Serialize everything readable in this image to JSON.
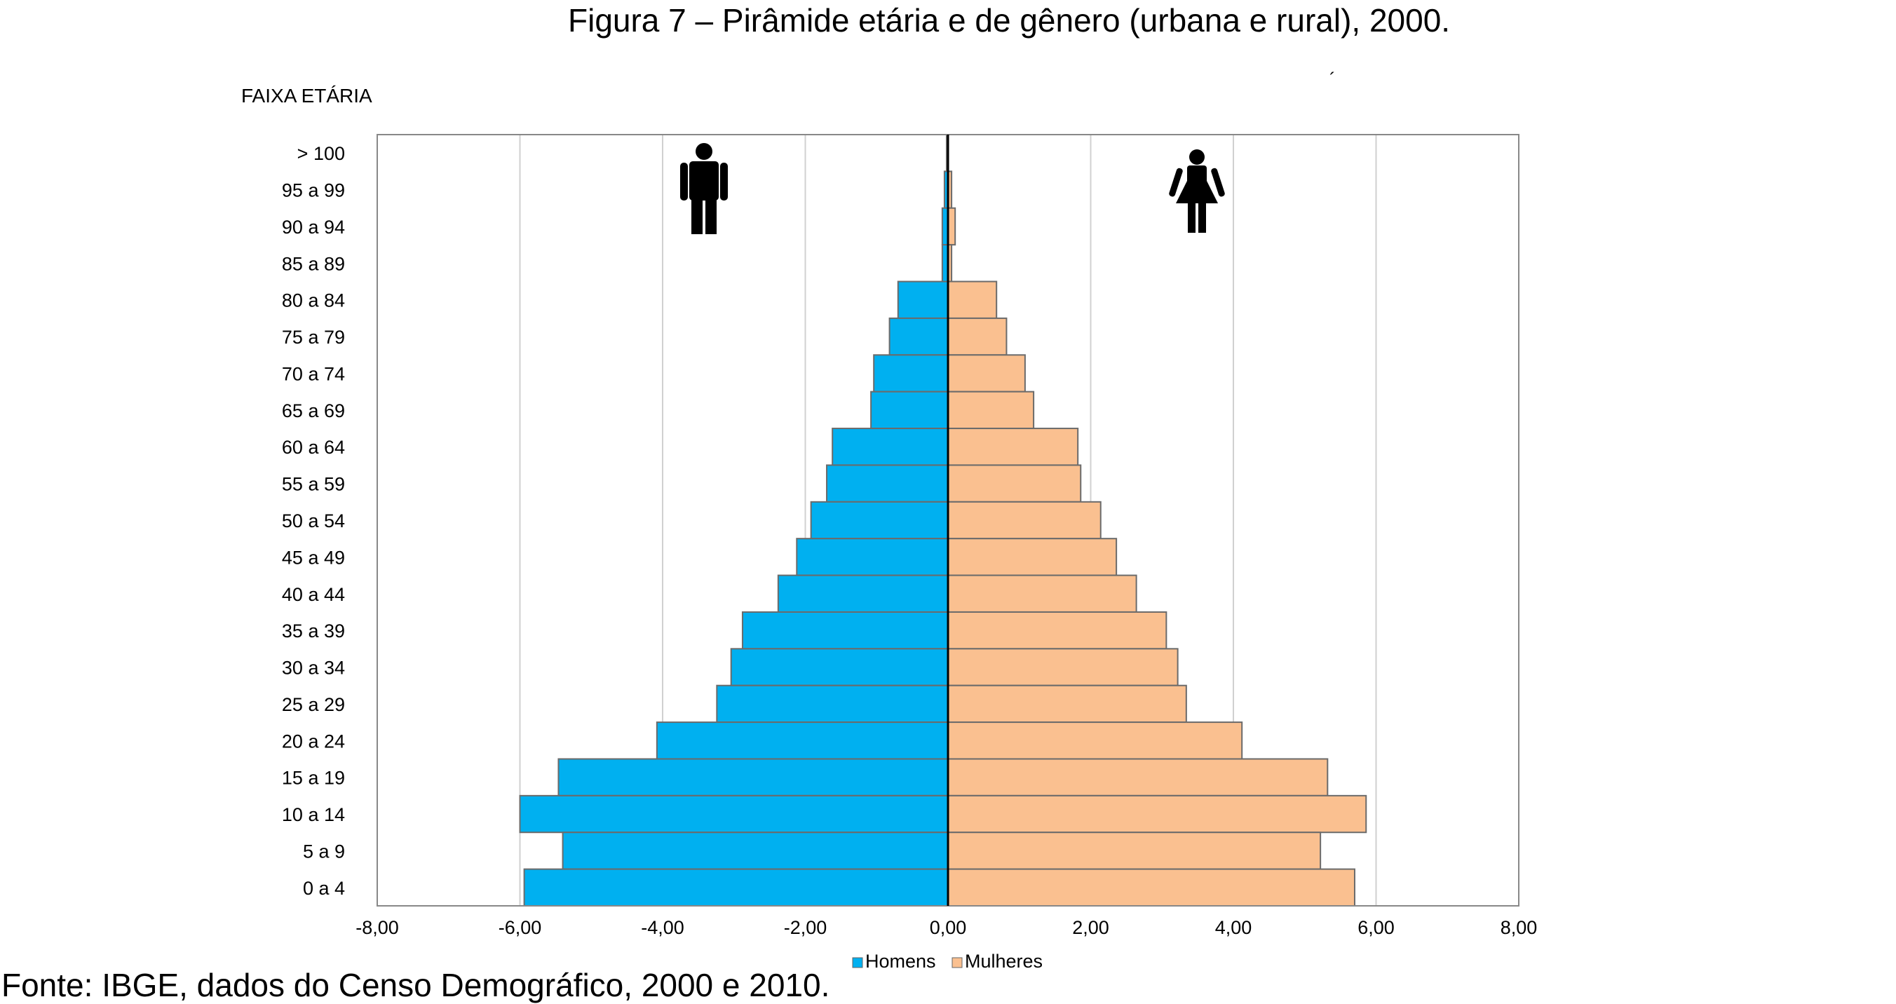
{
  "figure_title": "Figura 7 – Pirâmide etária e de gênero (urbana e rural), 2000.",
  "source_text": "Fonte: IBGE, dados do Censo Demográfico, 2000 e 2010.",
  "chart_data": {
    "type": "bar",
    "orientation": "horizontal",
    "ylabel": "FAIXA ETÁRIA",
    "categories": [
      "> 100",
      "95 a 99",
      "90 a 94",
      "85 a 89",
      "80 a 84",
      "75 a 79",
      "70 a 74",
      "65 a 69",
      "60 a 64",
      "55 a 59",
      "50 a 54",
      "45 a 49",
      "40 a 44",
      "35 a 39",
      "30 a 34",
      "25 a 29",
      "20 a 24",
      "15 a 19",
      "10 a 14",
      "5 a 9",
      "0 a 4"
    ],
    "series": [
      {
        "name": "Homens",
        "color": "#00b0f0",
        "values": [
          -0.02,
          -0.05,
          -0.08,
          -0.08,
          -0.7,
          -0.82,
          -1.04,
          -1.08,
          -1.62,
          -1.7,
          -1.92,
          -2.12,
          -2.38,
          -2.88,
          -3.04,
          -3.24,
          -4.08,
          -5.46,
          -6.0,
          -5.4,
          -5.94
        ]
      },
      {
        "name": "Mulheres",
        "color": "#fac090",
        "values": [
          0.0,
          0.05,
          0.1,
          0.05,
          0.68,
          0.82,
          1.08,
          1.2,
          1.82,
          1.86,
          2.14,
          2.36,
          2.64,
          3.06,
          3.22,
          3.34,
          4.12,
          5.32,
          5.86,
          5.22,
          5.7
        ]
      }
    ],
    "xlim": [
      -8,
      8
    ],
    "xticks": [
      -8,
      -6,
      -4,
      -2,
      0,
      2,
      4,
      6,
      8
    ],
    "xtick_labels": [
      "-8,00",
      "-6,00",
      "-4,00",
      "-2,00",
      "0,00",
      "2,00",
      "4,00",
      "6,00",
      "8,00"
    ],
    "grid": "vertical",
    "legend": "bottom-center",
    "annotations": [
      "male-figure-icon",
      "female-figure-icon"
    ]
  }
}
